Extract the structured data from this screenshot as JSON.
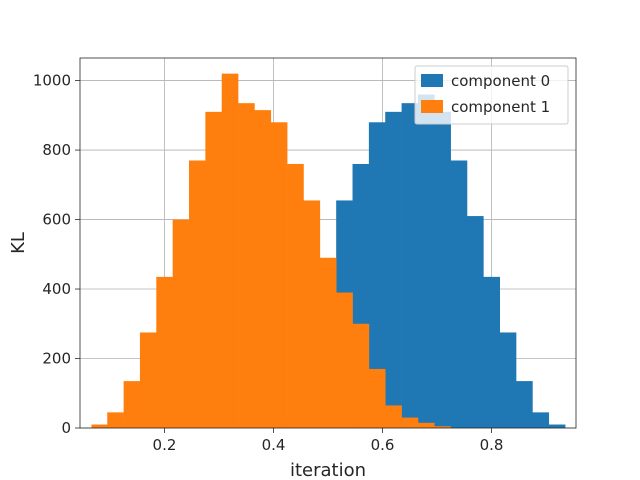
{
  "chart_data": {
    "type": "bar",
    "subtype": "histogram",
    "title": "",
    "xlabel": "iteration",
    "ylabel": "KL",
    "xlim": [
      0.045,
      0.955
    ],
    "ylim": [
      0,
      1065
    ],
    "xticks": [
      0.2,
      0.4,
      0.6,
      0.8
    ],
    "xtick_labels": [
      "0.2",
      "0.4",
      "0.6",
      "0.8"
    ],
    "yticks": [
      0,
      200,
      400,
      600,
      800,
      1000
    ],
    "ytick_labels": [
      "0",
      "200",
      "400",
      "600",
      "800",
      "1000"
    ],
    "grid": true,
    "legend_position": "top-right",
    "series": [
      {
        "name": "component 0",
        "color": "#1f77b4",
        "bins": [
          {
            "x0": 0.355,
            "x1": 0.385,
            "value": 5
          },
          {
            "x0": 0.385,
            "x1": 0.415,
            "value": 15
          },
          {
            "x0": 0.415,
            "x1": 0.445,
            "value": 30
          },
          {
            "x0": 0.445,
            "x1": 0.475,
            "value": 65
          },
          {
            "x0": 0.475,
            "x1": 0.505,
            "value": 170
          },
          {
            "x0": 0.505,
            "x1": 0.515,
            "value": 330
          },
          {
            "x0": 0.515,
            "x1": 0.545,
            "value": 655
          },
          {
            "x0": 0.545,
            "x1": 0.575,
            "value": 760
          },
          {
            "x0": 0.575,
            "x1": 0.605,
            "value": 880
          },
          {
            "x0": 0.605,
            "x1": 0.635,
            "value": 910
          },
          {
            "x0": 0.635,
            "x1": 0.665,
            "value": 935
          },
          {
            "x0": 0.665,
            "x1": 0.695,
            "value": 960
          },
          {
            "x0": 0.695,
            "x1": 0.725,
            "value": 910
          },
          {
            "x0": 0.725,
            "x1": 0.755,
            "value": 770
          },
          {
            "x0": 0.755,
            "x1": 0.785,
            "value": 610
          },
          {
            "x0": 0.785,
            "x1": 0.815,
            "value": 435
          },
          {
            "x0": 0.815,
            "x1": 0.845,
            "value": 275
          },
          {
            "x0": 0.845,
            "x1": 0.875,
            "value": 135
          },
          {
            "x0": 0.875,
            "x1": 0.905,
            "value": 45
          },
          {
            "x0": 0.905,
            "x1": 0.935,
            "value": 10
          }
        ]
      },
      {
        "name": "component 1",
        "color": "#ff7f0e",
        "bins": [
          {
            "x0": 0.066,
            "x1": 0.095,
            "value": 10
          },
          {
            "x0": 0.095,
            "x1": 0.125,
            "value": 45
          },
          {
            "x0": 0.125,
            "x1": 0.155,
            "value": 135
          },
          {
            "x0": 0.155,
            "x1": 0.185,
            "value": 275
          },
          {
            "x0": 0.185,
            "x1": 0.215,
            "value": 435
          },
          {
            "x0": 0.215,
            "x1": 0.245,
            "value": 600
          },
          {
            "x0": 0.245,
            "x1": 0.275,
            "value": 770
          },
          {
            "x0": 0.275,
            "x1": 0.305,
            "value": 910
          },
          {
            "x0": 0.305,
            "x1": 0.335,
            "value": 1020
          },
          {
            "x0": 0.335,
            "x1": 0.365,
            "value": 935
          },
          {
            "x0": 0.365,
            "x1": 0.395,
            "value": 915
          },
          {
            "x0": 0.395,
            "x1": 0.425,
            "value": 880
          },
          {
            "x0": 0.425,
            "x1": 0.455,
            "value": 760
          },
          {
            "x0": 0.455,
            "x1": 0.485,
            "value": 655
          },
          {
            "x0": 0.485,
            "x1": 0.515,
            "value": 490
          },
          {
            "x0": 0.515,
            "x1": 0.545,
            "value": 390
          },
          {
            "x0": 0.545,
            "x1": 0.575,
            "value": 300
          },
          {
            "x0": 0.575,
            "x1": 0.605,
            "value": 170
          },
          {
            "x0": 0.605,
            "x1": 0.635,
            "value": 65
          },
          {
            "x0": 0.635,
            "x1": 0.665,
            "value": 30
          },
          {
            "x0": 0.665,
            "x1": 0.695,
            "value": 15
          },
          {
            "x0": 0.695,
            "x1": 0.725,
            "value": 5
          }
        ]
      }
    ]
  }
}
